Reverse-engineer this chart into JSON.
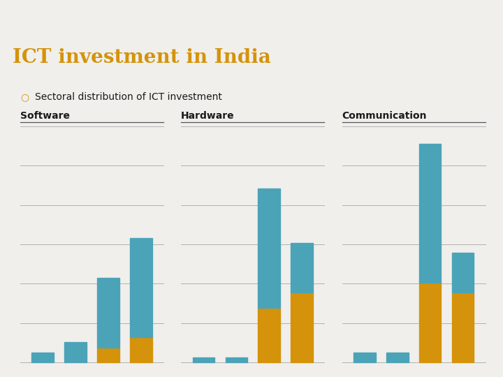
{
  "title": "ICT investment in India",
  "subtitle": "Sectoral distribution of ICT investment",
  "bar_groups": [
    {
      "label": "Software",
      "teal": [
        1,
        2,
        7,
        10
      ],
      "gold": [
        0,
        0,
        1.5,
        2.5
      ]
    },
    {
      "label": "Hardware",
      "teal": [
        0.5,
        0.5,
        12,
        5
      ],
      "gold": [
        0,
        0,
        5.5,
        7
      ]
    },
    {
      "label": "Communication",
      "teal": [
        1,
        1,
        14,
        4
      ],
      "gold": [
        0,
        0,
        8,
        7
      ]
    }
  ],
  "teal_color": "#4BA3B8",
  "gold_color": "#D4930A",
  "slide_bg": "#F0EFEC",
  "title_bg": "#1C1C1C",
  "title_color": "#D4930A",
  "header_stripe": "#8B3A00",
  "top_stripe": "#5C1A00",
  "subtitle_color": "#1A1A1A",
  "panel_label_color": "#1A1A1A",
  "grid_color": "#AAAAAA",
  "line_color": "#555555"
}
